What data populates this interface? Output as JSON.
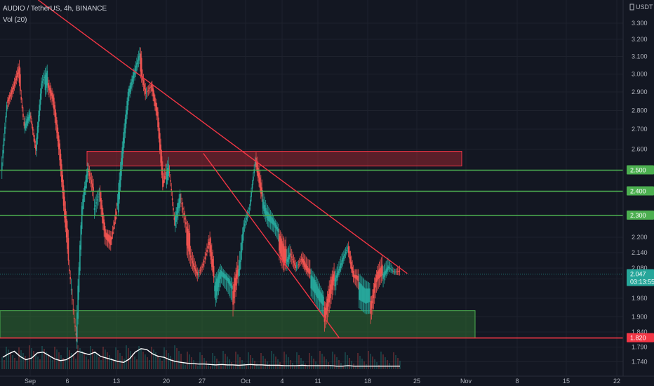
{
  "header": {
    "symbol_line": "AUDIO / TetherUS, 4h, BINANCE",
    "indicator_line": "Vol (20)",
    "currency": "USDT"
  },
  "colors": {
    "background": "#131722",
    "grid": "#1e222d",
    "up_candle": "#26a69a",
    "down_candle": "#ef5350",
    "trendline": "#f23645",
    "support_line": "#4caf50",
    "resistance_zone": "#b22833",
    "demand_zone": "#2e6b32",
    "volume_ma": "#ffffff"
  },
  "chart_data": {
    "type": "candlestick",
    "symbol": "AUDIO / TetherUS",
    "interval": "4h",
    "exchange": "BINANCE",
    "y_axis": {
      "ticks": [
        "3.300",
        "3.200",
        "3.100",
        "3.000",
        "2.900",
        "2.800",
        "2.700",
        "2.600",
        "2.500",
        "2.400",
        "2.300",
        "2.200",
        "2.140",
        "2.080",
        "2.020",
        "1.960",
        "1.900",
        "1.840",
        "1.790",
        "1.740"
      ]
    },
    "x_axis": {
      "ticks": [
        "Sep",
        "6",
        "13",
        "20",
        "27",
        "Oct",
        "4",
        "11",
        "18",
        "25",
        "Nov",
        "8",
        "15",
        "22"
      ]
    },
    "price_series": [
      2.52,
      2.86,
      2.92,
      3.01,
      2.72,
      2.78,
      2.58,
      2.92,
      2.98,
      2.88,
      2.62,
      2.3,
      2.02,
      1.82,
      2.32,
      2.48,
      2.36,
      2.42,
      2.22,
      2.18,
      2.3,
      2.6,
      2.88,
      2.98,
      3.08,
      2.92,
      2.95,
      2.78,
      2.42,
      2.52,
      2.26,
      2.36,
      2.22,
      2.14,
      2.06,
      2.1,
      2.17,
      1.99,
      2.05,
      2.01,
      1.96,
      2.07,
      2.27,
      2.34,
      2.54,
      2.38,
      2.3,
      2.26,
      2.2,
      2.12,
      2.16,
      2.09,
      2.11,
      2.05,
      2.01,
      1.96,
      1.92,
      1.99,
      2.06,
      2.12,
      2.16,
      2.02,
      1.99,
      1.96,
      1.95,
      2.04,
      2.06,
      2.1,
      2.06,
      2.05
    ],
    "price_tags": [
      {
        "label": "2.500",
        "value": 2.5,
        "style": "support"
      },
      {
        "label": "2.400",
        "value": 2.4,
        "style": "support"
      },
      {
        "label": "2.300",
        "value": 2.3,
        "style": "support"
      },
      {
        "label": "2.047",
        "value": 2.047,
        "style": "last"
      },
      {
        "label": "03:13:55",
        "value": 2.047,
        "style": "countdown"
      },
      {
        "label": "1.820",
        "value": 1.82,
        "style": "low"
      }
    ],
    "horizontal_lines": [
      {
        "value": 2.5,
        "color": "support"
      },
      {
        "value": 2.4,
        "color": "support"
      },
      {
        "value": 2.3,
        "color": "support"
      },
      {
        "value": 1.82,
        "color": "trendline"
      }
    ],
    "zones": [
      {
        "name": "resistance-zone",
        "from": 2.52,
        "to": 2.59
      },
      {
        "name": "demand-zone",
        "from": 1.82,
        "to": 1.92
      }
    ],
    "trendlines": [
      {
        "name": "major-downtrend",
        "from": {
          "date": "Aug 30",
          "value": 3.45
        },
        "to": {
          "date": "Nov 14",
          "value": 2.05
        }
      },
      {
        "name": "minor-downtrend",
        "from": {
          "date": "Oct 3",
          "value": 2.58
        },
        "to": {
          "date": "Oct 31",
          "value": 1.82
        }
      }
    ],
    "volume_ma": [
      0.28,
      0.36,
      0.42,
      0.3,
      0.22,
      0.26,
      0.38,
      0.4,
      0.32,
      0.24,
      0.2,
      0.22,
      0.3,
      0.42,
      0.38,
      0.34,
      0.4,
      0.3,
      0.26,
      0.22,
      0.18,
      0.16,
      0.24,
      0.4,
      0.48,
      0.46,
      0.36,
      0.3,
      0.28,
      0.22,
      0.18,
      0.16,
      0.14,
      0.13,
      0.12,
      0.12,
      0.11,
      0.1,
      0.11,
      0.1,
      0.1,
      0.09,
      0.1,
      0.11,
      0.1,
      0.1,
      0.09,
      0.09,
      0.09,
      0.08,
      0.08,
      0.08,
      0.09,
      0.08,
      0.08,
      0.08,
      0.08,
      0.08,
      0.07,
      0.07,
      0.08,
      0.07,
      0.07,
      0.07,
      0.07,
      0.07,
      0.07,
      0.07,
      0.07,
      0.07
    ]
  }
}
